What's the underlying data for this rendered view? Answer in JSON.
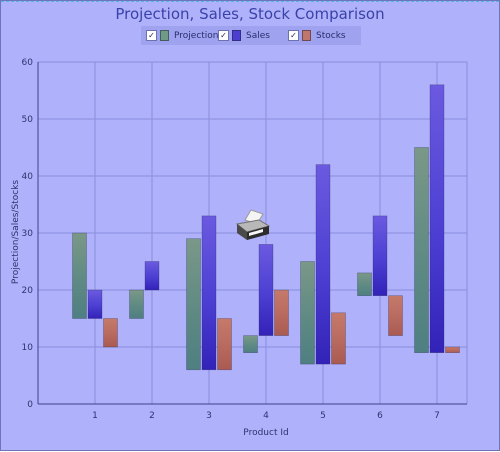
{
  "chart_data": {
    "type": "bar",
    "title": "Projection, Sales, Stock Comparison",
    "xlabel": "Product Id",
    "ylabel": "Projection/Sales/Stocks",
    "categories": [
      "1",
      "2",
      "3",
      "4",
      "5",
      "6",
      "7"
    ],
    "ylim": [
      0,
      60
    ],
    "yticks": [
      "0",
      "10",
      "20",
      "30",
      "40",
      "50",
      "60"
    ],
    "grid": true,
    "legend_position": "top-center",
    "series": [
      {
        "name": "Projection",
        "color": "#6e9a86",
        "low": [
          15,
          15,
          6,
          9,
          7,
          19,
          9
        ],
        "high": [
          30,
          20,
          29,
          12,
          25,
          23,
          45
        ]
      },
      {
        "name": "Sales",
        "color": "#4d3fd0",
        "low": [
          15,
          20,
          6,
          12,
          7,
          19,
          9
        ],
        "high": [
          20,
          25,
          33,
          28,
          42,
          33,
          56
        ]
      },
      {
        "name": "Stocks",
        "color": "#c07668",
        "low": [
          10,
          null,
          6,
          12,
          7,
          12,
          9
        ],
        "high": [
          15,
          null,
          15,
          20,
          16,
          19,
          10
        ]
      }
    ]
  },
  "legend": {
    "checked_mark": "✓",
    "items": [
      {
        "label": "Projection",
        "color": "#6e9a86",
        "checked": true
      },
      {
        "label": "Sales",
        "color": "#4d3fd0",
        "checked": true
      },
      {
        "label": "Stocks",
        "color": "#c07668",
        "checked": true
      }
    ]
  },
  "icons": {
    "print": "printer-icon"
  }
}
